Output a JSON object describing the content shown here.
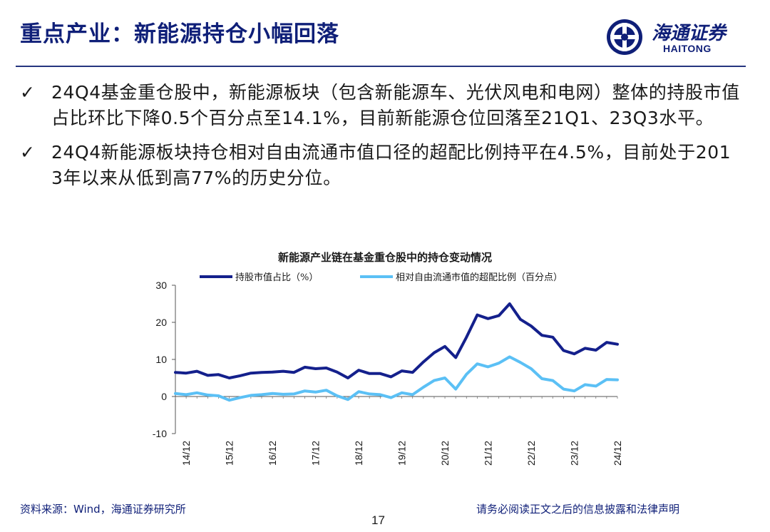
{
  "slide": {
    "title": "重点产业：新能源持仓小幅回落",
    "logo_cn": "海通证券",
    "logo_en": "HAITONG",
    "bullets": [
      "24Q4基金重仓股中，新能源板块（包含新能源车、光伏风电和电网）整体的持股市值占比环比下降0.5个百分点至14.1%，目前新能源仓位回落至21Q1、23Q3水平。",
      "24Q4新能源板块持仓相对自由流通市值口径的超配比例持平在4.5%，目前处于2013年以来从低到高77%的历史分位。"
    ],
    "check_glyph": "✓",
    "footer_source": "资料来源：Wind，海通证券研究所",
    "footer_disclaimer": "请务必阅读正文之后的信息披露和法律声明",
    "page_number": "17"
  },
  "chart_data": {
    "type": "line",
    "title": "新能源产业链在基金重仓股中的持仓变动情况",
    "ylim": [
      -10,
      30
    ],
    "yticks": [
      -10,
      0,
      10,
      20,
      30
    ],
    "x": [
      "14/09",
      "14/12",
      "15/03",
      "15/06",
      "15/09",
      "15/12",
      "16/03",
      "16/06",
      "16/09",
      "16/12",
      "17/03",
      "17/06",
      "17/09",
      "17/12",
      "18/03",
      "18/06",
      "18/09",
      "18/12",
      "19/03",
      "19/06",
      "19/09",
      "19/12",
      "20/03",
      "20/06",
      "20/09",
      "20/12",
      "21/03",
      "21/06",
      "21/09",
      "21/12",
      "22/03",
      "22/06",
      "22/09",
      "22/12",
      "23/03",
      "23/06",
      "23/09",
      "23/12",
      "24/03",
      "24/06",
      "24/09",
      "24/12"
    ],
    "xtick_labels": [
      "14/12",
      "15/12",
      "16/12",
      "17/12",
      "18/12",
      "19/12",
      "20/12",
      "21/12",
      "22/12",
      "23/12",
      "24/12"
    ],
    "legend_position": "top",
    "series": [
      {
        "name": "持股市值占比（%）",
        "color": "#14208c",
        "values": [
          6.5,
          6.3,
          6.8,
          5.7,
          5.9,
          5.0,
          5.6,
          6.3,
          6.5,
          6.6,
          6.8,
          6.5,
          7.9,
          7.5,
          7.7,
          6.6,
          5.0,
          7.1,
          6.2,
          6.2,
          5.3,
          6.9,
          6.5,
          9.3,
          11.8,
          13.5,
          10.5,
          16.0,
          22.0,
          21.0,
          21.8,
          25.0,
          20.8,
          19.0,
          16.5,
          16.0,
          12.4,
          11.5,
          13.0,
          12.5,
          14.6,
          14.1
        ]
      },
      {
        "name": "相对自由流通市值的超配比例（百分点）",
        "color": "#5bc0f5",
        "values": [
          0.8,
          0.5,
          1.0,
          0.4,
          0.2,
          -1.0,
          -0.3,
          0.3,
          0.5,
          0.8,
          0.6,
          0.7,
          1.5,
          1.2,
          1.7,
          0.2,
          -0.8,
          1.3,
          0.7,
          0.5,
          -0.3,
          1.0,
          0.5,
          2.5,
          4.3,
          5.0,
          2.0,
          6.0,
          8.8,
          8.0,
          9.0,
          10.7,
          9.2,
          7.5,
          4.8,
          4.3,
          2.0,
          1.5,
          3.2,
          2.8,
          4.6,
          4.5
        ]
      }
    ]
  }
}
